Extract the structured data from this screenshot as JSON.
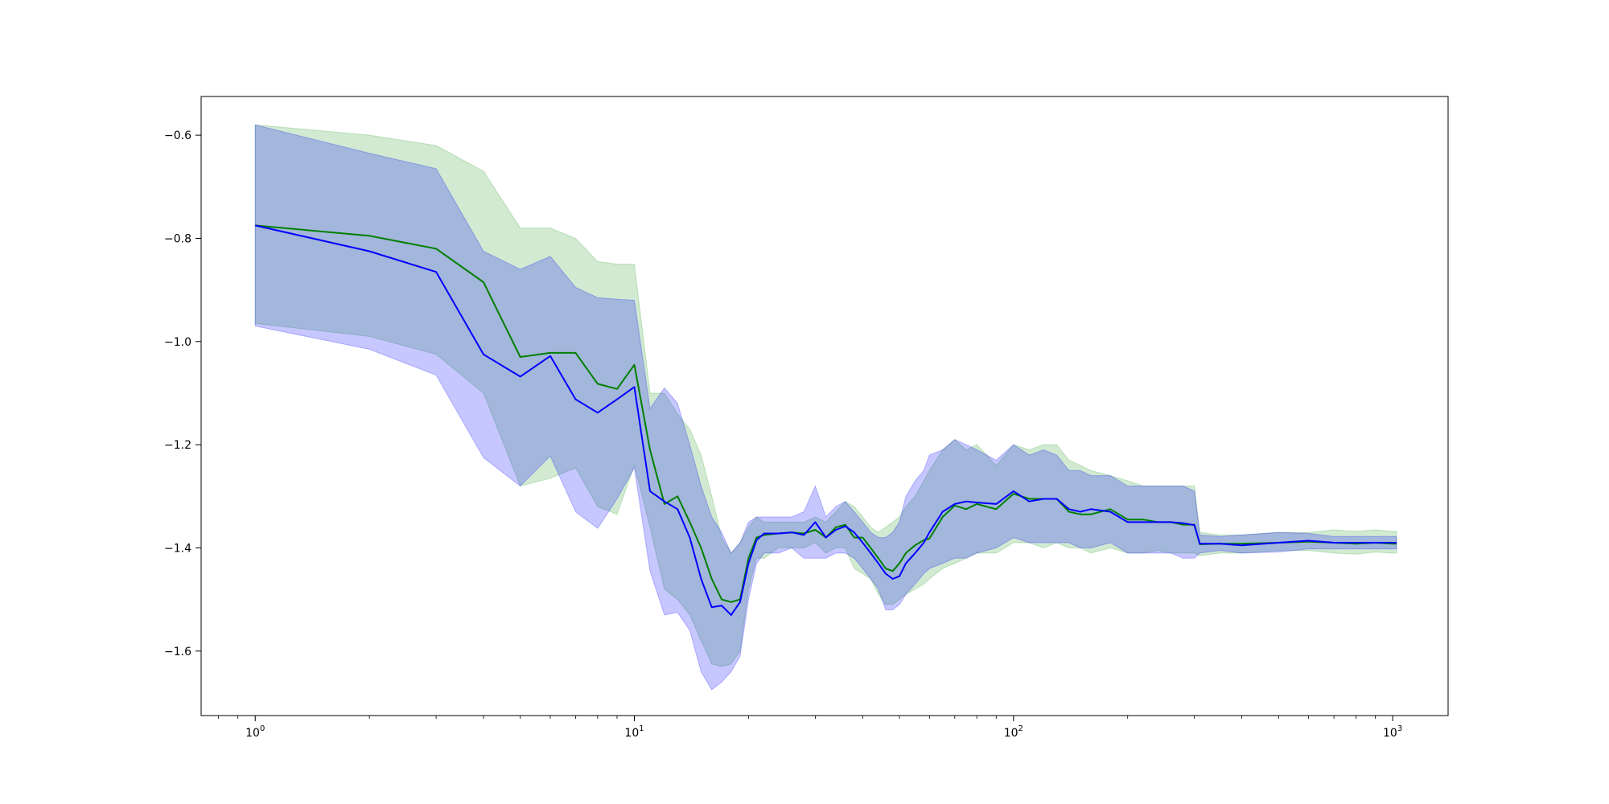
{
  "chart_data": {
    "type": "line",
    "title": "",
    "xlabel": "",
    "ylabel": "",
    "xscale": "log",
    "xlim": [
      0.72,
      1400
    ],
    "ylim": [
      -1.725,
      -0.525
    ],
    "grid": false,
    "legend": "none",
    "x_ticks": [
      {
        "value": 1,
        "base": "10",
        "exp": "0"
      },
      {
        "value": 10,
        "base": "10",
        "exp": "1"
      },
      {
        "value": 100,
        "base": "10",
        "exp": "2"
      },
      {
        "value": 1000,
        "base": "10",
        "exp": "3"
      }
    ],
    "y_ticks": [
      {
        "value": -0.6,
        "label": "−0.6"
      },
      {
        "value": -0.8,
        "label": "−0.8"
      },
      {
        "value": -1.0,
        "label": "−1.0"
      },
      {
        "value": -1.2,
        "label": "−1.2"
      },
      {
        "value": -1.4,
        "label": "−1.4"
      },
      {
        "value": -1.6,
        "label": "−1.6"
      }
    ],
    "series": [
      {
        "color": "#008000",
        "band_color": "#2ca02c",
        "x": [
          1,
          2,
          3,
          4,
          5,
          6,
          7,
          8,
          9,
          10,
          11,
          12,
          13,
          14,
          15,
          16,
          17,
          18,
          19,
          20,
          21,
          22,
          24,
          26,
          28,
          30,
          32,
          34,
          36,
          38,
          40,
          42,
          44,
          46,
          48,
          50,
          52,
          55,
          58,
          60,
          65,
          70,
          75,
          80,
          90,
          100,
          110,
          120,
          130,
          140,
          150,
          160,
          180,
          200,
          220,
          240,
          260,
          280,
          300,
          310,
          350,
          400,
          500,
          600,
          700,
          800,
          900,
          1000,
          1024
        ],
        "y": [
          -0.775,
          -0.795,
          -0.82,
          -0.885,
          -1.03,
          -1.022,
          -1.022,
          -1.082,
          -1.092,
          -1.045,
          -1.21,
          -1.315,
          -1.3,
          -1.35,
          -1.4,
          -1.46,
          -1.5,
          -1.505,
          -1.5,
          -1.42,
          -1.38,
          -1.375,
          -1.372,
          -1.37,
          -1.372,
          -1.365,
          -1.38,
          -1.36,
          -1.355,
          -1.38,
          -1.38,
          -1.4,
          -1.42,
          -1.44,
          -1.445,
          -1.43,
          -1.41,
          -1.395,
          -1.385,
          -1.382,
          -1.34,
          -1.318,
          -1.325,
          -1.315,
          -1.325,
          -1.295,
          -1.305,
          -1.305,
          -1.305,
          -1.33,
          -1.335,
          -1.335,
          -1.325,
          -1.345,
          -1.345,
          -1.35,
          -1.35,
          -1.355,
          -1.355,
          -1.393,
          -1.392,
          -1.392,
          -1.39,
          -1.388,
          -1.39,
          -1.392,
          -1.39,
          -1.392,
          -1.392
        ],
        "band_upper": [
          -0.58,
          -0.6,
          -0.62,
          -0.67,
          -0.78,
          -0.78,
          -0.8,
          -0.845,
          -0.85,
          -0.85,
          -1.1,
          -1.1,
          -1.14,
          -1.17,
          -1.22,
          -1.3,
          -1.38,
          -1.41,
          -1.39,
          -1.36,
          -1.34,
          -1.35,
          -1.35,
          -1.35,
          -1.35,
          -1.34,
          -1.35,
          -1.33,
          -1.31,
          -1.32,
          -1.34,
          -1.36,
          -1.37,
          -1.36,
          -1.35,
          -1.34,
          -1.32,
          -1.3,
          -1.27,
          -1.25,
          -1.21,
          -1.19,
          -1.21,
          -1.2,
          -1.24,
          -1.2,
          -1.21,
          -1.2,
          -1.2,
          -1.23,
          -1.24,
          -1.25,
          -1.26,
          -1.27,
          -1.28,
          -1.28,
          -1.28,
          -1.28,
          -1.28,
          -1.37,
          -1.375,
          -1.375,
          -1.37,
          -1.37,
          -1.365,
          -1.368,
          -1.365,
          -1.368,
          -1.368
        ],
        "band_lower": [
          -0.965,
          -0.99,
          -1.025,
          -1.1,
          -1.28,
          -1.265,
          -1.245,
          -1.32,
          -1.335,
          -1.24,
          -1.36,
          -1.48,
          -1.5,
          -1.53,
          -1.58,
          -1.625,
          -1.63,
          -1.625,
          -1.6,
          -1.48,
          -1.42,
          -1.42,
          -1.4,
          -1.4,
          -1.4,
          -1.39,
          -1.41,
          -1.4,
          -1.4,
          -1.44,
          -1.45,
          -1.46,
          -1.49,
          -1.51,
          -1.51,
          -1.5,
          -1.49,
          -1.48,
          -1.47,
          -1.46,
          -1.44,
          -1.43,
          -1.42,
          -1.41,
          -1.41,
          -1.39,
          -1.39,
          -1.4,
          -1.39,
          -1.4,
          -1.4,
          -1.41,
          -1.4,
          -1.41,
          -1.41,
          -1.405,
          -1.41,
          -1.41,
          -1.41,
          -1.415,
          -1.41,
          -1.41,
          -1.405,
          -1.405,
          -1.41,
          -1.412,
          -1.408,
          -1.41,
          -1.41
        ]
      },
      {
        "color": "#0000ff",
        "band_color": "#0000ff",
        "x": [
          1,
          2,
          3,
          4,
          5,
          6,
          7,
          8,
          9,
          10,
          11,
          12,
          13,
          14,
          15,
          16,
          17,
          18,
          19,
          20,
          21,
          22,
          24,
          26,
          28,
          30,
          32,
          34,
          36,
          38,
          40,
          42,
          44,
          46,
          48,
          50,
          52,
          55,
          58,
          60,
          65,
          70,
          75,
          80,
          90,
          100,
          110,
          120,
          130,
          140,
          150,
          160,
          180,
          200,
          220,
          240,
          260,
          280,
          300,
          310,
          350,
          400,
          500,
          600,
          700,
          800,
          900,
          1000,
          1024
        ],
        "y": [
          -0.775,
          -0.825,
          -0.865,
          -1.025,
          -1.068,
          -1.028,
          -1.112,
          -1.138,
          -1.112,
          -1.088,
          -1.29,
          -1.31,
          -1.325,
          -1.38,
          -1.46,
          -1.515,
          -1.512,
          -1.53,
          -1.505,
          -1.43,
          -1.385,
          -1.372,
          -1.372,
          -1.37,
          -1.375,
          -1.35,
          -1.38,
          -1.365,
          -1.358,
          -1.37,
          -1.39,
          -1.41,
          -1.43,
          -1.45,
          -1.46,
          -1.455,
          -1.43,
          -1.41,
          -1.39,
          -1.37,
          -1.33,
          -1.315,
          -1.31,
          -1.312,
          -1.315,
          -1.29,
          -1.31,
          -1.305,
          -1.305,
          -1.325,
          -1.33,
          -1.325,
          -1.33,
          -1.35,
          -1.35,
          -1.35,
          -1.35,
          -1.352,
          -1.356,
          -1.392,
          -1.392,
          -1.395,
          -1.39,
          -1.386,
          -1.39,
          -1.39,
          -1.39,
          -1.39,
          -1.39
        ],
        "band_upper": [
          -0.58,
          -0.635,
          -0.665,
          -0.825,
          -0.86,
          -0.835,
          -0.895,
          -0.915,
          -0.918,
          -0.92,
          -1.13,
          -1.09,
          -1.12,
          -1.2,
          -1.28,
          -1.34,
          -1.37,
          -1.41,
          -1.39,
          -1.35,
          -1.34,
          -1.34,
          -1.34,
          -1.34,
          -1.33,
          -1.28,
          -1.34,
          -1.32,
          -1.31,
          -1.33,
          -1.35,
          -1.37,
          -1.38,
          -1.38,
          -1.37,
          -1.35,
          -1.3,
          -1.27,
          -1.25,
          -1.22,
          -1.21,
          -1.19,
          -1.2,
          -1.21,
          -1.23,
          -1.2,
          -1.22,
          -1.21,
          -1.22,
          -1.25,
          -1.25,
          -1.26,
          -1.26,
          -1.28,
          -1.28,
          -1.28,
          -1.28,
          -1.28,
          -1.29,
          -1.375,
          -1.378,
          -1.375,
          -1.37,
          -1.372,
          -1.378,
          -1.378,
          -1.378,
          -1.378,
          -1.378
        ],
        "band_lower": [
          -0.97,
          -1.015,
          -1.065,
          -1.225,
          -1.28,
          -1.222,
          -1.33,
          -1.362,
          -1.305,
          -1.245,
          -1.445,
          -1.53,
          -1.525,
          -1.56,
          -1.64,
          -1.675,
          -1.66,
          -1.64,
          -1.61,
          -1.5,
          -1.43,
          -1.41,
          -1.41,
          -1.4,
          -1.42,
          -1.42,
          -1.42,
          -1.41,
          -1.41,
          -1.42,
          -1.44,
          -1.46,
          -1.48,
          -1.52,
          -1.52,
          -1.51,
          -1.49,
          -1.47,
          -1.45,
          -1.44,
          -1.43,
          -1.42,
          -1.42,
          -1.41,
          -1.4,
          -1.38,
          -1.39,
          -1.39,
          -1.39,
          -1.39,
          -1.4,
          -1.4,
          -1.39,
          -1.41,
          -1.41,
          -1.41,
          -1.41,
          -1.42,
          -1.42,
          -1.41,
          -1.405,
          -1.41,
          -1.408,
          -1.402,
          -1.402,
          -1.402,
          -1.402,
          -1.402,
          -1.402
        ]
      }
    ]
  }
}
